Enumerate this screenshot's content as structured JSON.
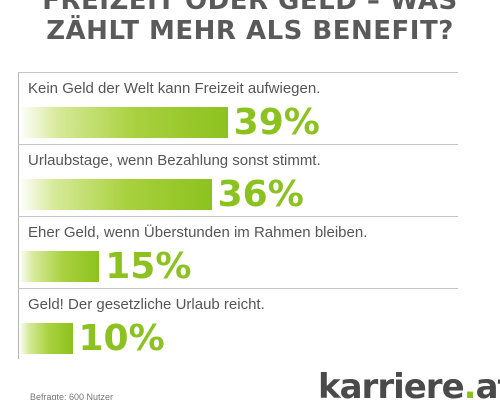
{
  "title_line1": "FREIZEIT ODER GELD – WAS",
  "title_line2": "ZÄHLT MEHR ALS BENEFIT?",
  "chart_data": {
    "type": "bar",
    "orientation": "horizontal",
    "categories": [
      "Kein Geld der Welt kann Freizeit aufwiegen.",
      "Urlaubstage, wenn Bezahlung sonst stimmt.",
      "Eher Geld, wenn Überstunden im Rahmen bleiben.",
      "Geld! Der gesetzliche Urlaub reicht."
    ],
    "values": [
      39,
      36,
      15,
      10
    ],
    "value_labels": [
      "39%",
      "36%",
      "15%",
      "10%"
    ],
    "unit": "%",
    "xlim": [
      0,
      100
    ],
    "bar_color": "#8bc21f",
    "grid": false
  },
  "source_text": "Befragte: 600 Nutzer",
  "logo_text": "karriere",
  "logo_dot": ".",
  "logo_suffix": "at",
  "colors": {
    "accent": "#8bc21f",
    "title": "#5a5a5a",
    "text": "#555555"
  }
}
